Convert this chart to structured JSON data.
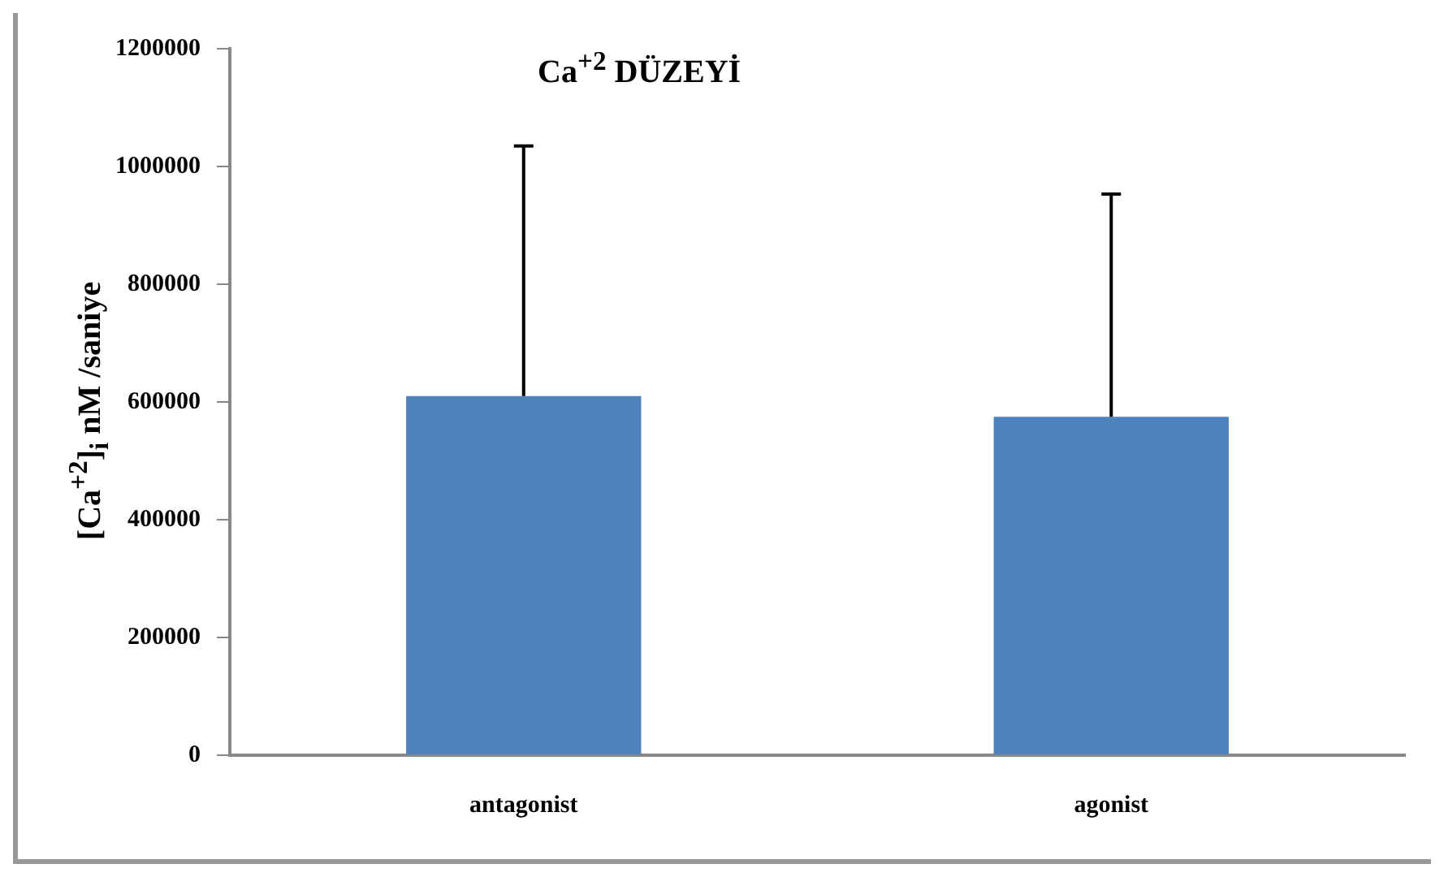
{
  "chart_data": {
    "type": "bar",
    "title": "Ca$^{+2}$ DÜZEYİ",
    "ylabel": "[Ca$^{+2}$]$_{i}$ nM /saniye",
    "categories": [
      "antagonist",
      "agonist"
    ],
    "values": [
      610000,
      575000
    ],
    "errors": [
      [
        610000,
        1035000
      ],
      [
        575000,
        953000
      ]
    ],
    "color": "#4f81bd",
    "ylim": [
      0,
      1200000
    ],
    "yticks": [
      0,
      200000,
      400000,
      600000,
      800000,
      1000000,
      1200000
    ],
    "grid": false,
    "legend": false
  }
}
